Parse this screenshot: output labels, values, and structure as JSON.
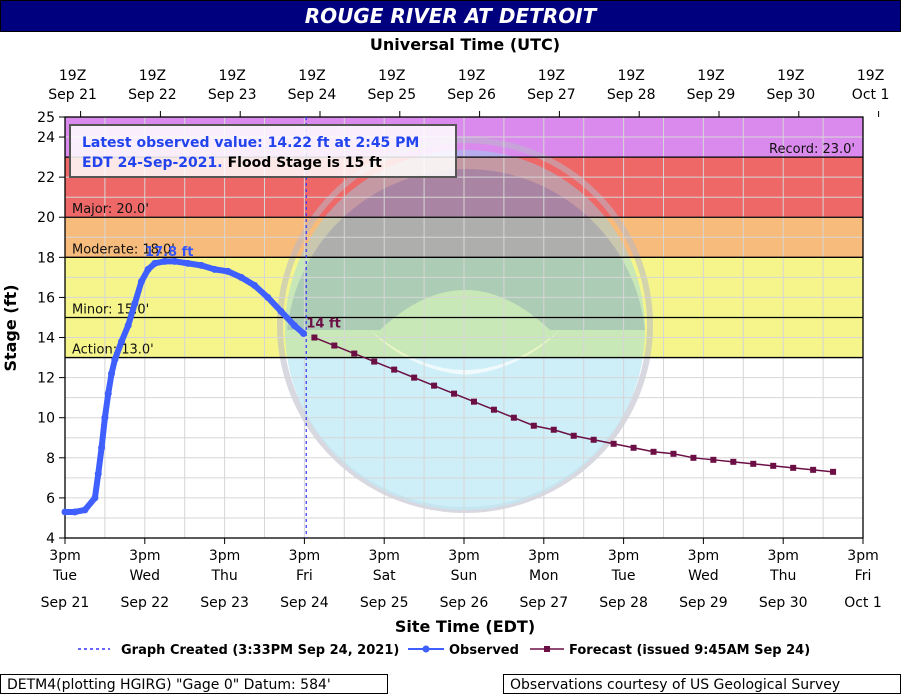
{
  "header": {
    "title": "ROUGE RIVER AT DETROIT"
  },
  "colors": {
    "title_bg": "#00007f",
    "record_band": "#da8aed",
    "major_band": "#ee6868",
    "moderate_band": "#f7bb7b",
    "minor_band": "#f5f58c",
    "grid": "#d6d6d6",
    "observed": "#3f5fff",
    "forecast": "#6b0f45",
    "created_line": "#3333ff"
  },
  "chart_data": {
    "type": "line",
    "title": "ROUGE RIVER AT DETROIT",
    "xlabel": "Site Time (EDT)",
    "x2label": "Universal Time (UTC)",
    "ylabel": "Stage (ft)",
    "ylim": [
      4,
      25
    ],
    "xlim": [
      "2021-09-21 15:00",
      "2021-10-01 15:00"
    ],
    "yticks": [
      "4",
      "6",
      "8",
      "10",
      "12",
      "14",
      "16",
      "18",
      "20",
      "22",
      "24",
      "25"
    ],
    "top_ticks": [
      {
        "line1": "19Z",
        "line2": "Sep 21"
      },
      {
        "line1": "19Z",
        "line2": "Sep 22"
      },
      {
        "line1": "19Z",
        "line2": "Sep 23"
      },
      {
        "line1": "19Z",
        "line2": "Sep 24"
      },
      {
        "line1": "19Z",
        "line2": "Sep 25"
      },
      {
        "line1": "19Z",
        "line2": "Sep 26"
      },
      {
        "line1": "19Z",
        "line2": "Sep 27"
      },
      {
        "line1": "19Z",
        "line2": "Sep 28"
      },
      {
        "line1": "19Z",
        "line2": "Sep 29"
      },
      {
        "line1": "19Z",
        "line2": "Sep 30"
      },
      {
        "line1": "19Z",
        "line2": "Oct  1"
      }
    ],
    "bottom_ticks": [
      {
        "line1": "3pm",
        "line2": "Tue",
        "line3": "Sep 21"
      },
      {
        "line1": "3pm",
        "line2": "Wed",
        "line3": "Sep 22"
      },
      {
        "line1": "3pm",
        "line2": "Thu",
        "line3": "Sep 23"
      },
      {
        "line1": "3pm",
        "line2": "Fri",
        "line3": "Sep 24"
      },
      {
        "line1": "3pm",
        "line2": "Sat",
        "line3": "Sep 25"
      },
      {
        "line1": "3pm",
        "line2": "Sun",
        "line3": "Sep 26"
      },
      {
        "line1": "3pm",
        "line2": "Mon",
        "line3": "Sep 27"
      },
      {
        "line1": "3pm",
        "line2": "Tue",
        "line3": "Sep 28"
      },
      {
        "line1": "3pm",
        "line2": "Wed",
        "line3": "Sep 29"
      },
      {
        "line1": "3pm",
        "line2": "Thu",
        "line3": "Sep 30"
      },
      {
        "line1": "3pm",
        "line2": "Fri",
        "line3": "Oct 1"
      }
    ],
    "bands": [
      {
        "name": "record",
        "from": 23,
        "to": 25
      },
      {
        "name": "major",
        "from": 20,
        "to": 23
      },
      {
        "name": "moderate",
        "from": 18,
        "to": 20
      },
      {
        "name": "minor",
        "from": 15,
        "to": 18
      },
      {
        "name": "action",
        "from": 13,
        "to": 15
      }
    ],
    "thresholds": [
      {
        "label": "Record: 23.0'",
        "value": 23.0,
        "align": "right"
      },
      {
        "label": "Major: 20.0'",
        "value": 20.0,
        "align": "left"
      },
      {
        "label": "Moderate: 18.0'",
        "value": 18.0,
        "align": "left"
      },
      {
        "label": "Minor: 15.0'",
        "value": 15.0,
        "align": "left"
      },
      {
        "label": "Action: 13.0'",
        "value": 13.0,
        "align": "left"
      }
    ],
    "annotations": {
      "latest_line1": "Latest observed value: 14.22 ft at 2:45 PM",
      "latest_line2": "EDT 24-Sep-2021.",
      "flood_stage": "Flood Stage is 15 ft",
      "peak_label": "17.8 ft",
      "forecast_start_label": "14 ft"
    },
    "created_time": "2021-09-24 15:33",
    "series": [
      {
        "name": "Observed",
        "points": [
          [
            "2021-09-21 15:00",
            5.3
          ],
          [
            "2021-09-21 18:00",
            5.3
          ],
          [
            "2021-09-21 21:00",
            5.4
          ],
          [
            "2021-09-22 00:00",
            6.0
          ],
          [
            "2021-09-22 01:00",
            7.2
          ],
          [
            "2021-09-22 02:00",
            8.5
          ],
          [
            "2021-09-22 03:00",
            10.0
          ],
          [
            "2021-09-22 04:00",
            11.2
          ],
          [
            "2021-09-22 05:00",
            12.2
          ],
          [
            "2021-09-22 06:00",
            12.9
          ],
          [
            "2021-09-22 08:00",
            13.8
          ],
          [
            "2021-09-22 10:00",
            14.6
          ],
          [
            "2021-09-22 12:00",
            15.7
          ],
          [
            "2021-09-22 14:00",
            16.8
          ],
          [
            "2021-09-22 16:00",
            17.4
          ],
          [
            "2021-09-22 18:00",
            17.7
          ],
          [
            "2021-09-22 21:00",
            17.8
          ],
          [
            "2021-09-23 00:00",
            17.8
          ],
          [
            "2021-09-23 04:00",
            17.7
          ],
          [
            "2021-09-23 08:00",
            17.6
          ],
          [
            "2021-09-23 12:00",
            17.4
          ],
          [
            "2021-09-23 16:00",
            17.3
          ],
          [
            "2021-09-23 20:00",
            17.0
          ],
          [
            "2021-09-24 00:00",
            16.6
          ],
          [
            "2021-09-24 04:00",
            16.0
          ],
          [
            "2021-09-24 08:00",
            15.3
          ],
          [
            "2021-09-24 12:00",
            14.6
          ],
          [
            "2021-09-24 14:45",
            14.2
          ]
        ]
      },
      {
        "name": "Forecast",
        "points": [
          [
            "2021-09-24 18:00",
            14.0
          ],
          [
            "2021-09-25 00:00",
            13.6
          ],
          [
            "2021-09-25 06:00",
            13.2
          ],
          [
            "2021-09-25 12:00",
            12.8
          ],
          [
            "2021-09-25 18:00",
            12.4
          ],
          [
            "2021-09-26 00:00",
            12.0
          ],
          [
            "2021-09-26 06:00",
            11.6
          ],
          [
            "2021-09-26 12:00",
            11.2
          ],
          [
            "2021-09-26 18:00",
            10.8
          ],
          [
            "2021-09-27 00:00",
            10.4
          ],
          [
            "2021-09-27 06:00",
            10.0
          ],
          [
            "2021-09-27 12:00",
            9.6
          ],
          [
            "2021-09-27 18:00",
            9.4
          ],
          [
            "2021-09-28 00:00",
            9.1
          ],
          [
            "2021-09-28 06:00",
            8.9
          ],
          [
            "2021-09-28 12:00",
            8.7
          ],
          [
            "2021-09-28 18:00",
            8.5
          ],
          [
            "2021-09-29 00:00",
            8.3
          ],
          [
            "2021-09-29 06:00",
            8.2
          ],
          [
            "2021-09-29 12:00",
            8.0
          ],
          [
            "2021-09-29 18:00",
            7.9
          ],
          [
            "2021-09-30 00:00",
            7.8
          ],
          [
            "2021-09-30 06:00",
            7.7
          ],
          [
            "2021-09-30 12:00",
            7.6
          ],
          [
            "2021-09-30 18:00",
            7.5
          ],
          [
            "2021-10-01 00:00",
            7.4
          ],
          [
            "2021-10-01 06:00",
            7.3
          ]
        ]
      }
    ],
    "legend": {
      "created": "Graph Created (3:33PM Sep 24, 2021)",
      "observed": "Observed",
      "forecast": "Forecast (issued 9:45AM Sep 24)"
    }
  },
  "footer": {
    "left": "DETM4(plotting HGIRG) \"Gage 0\" Datum:  584'",
    "right": "Observations courtesy of US Geological Survey"
  }
}
